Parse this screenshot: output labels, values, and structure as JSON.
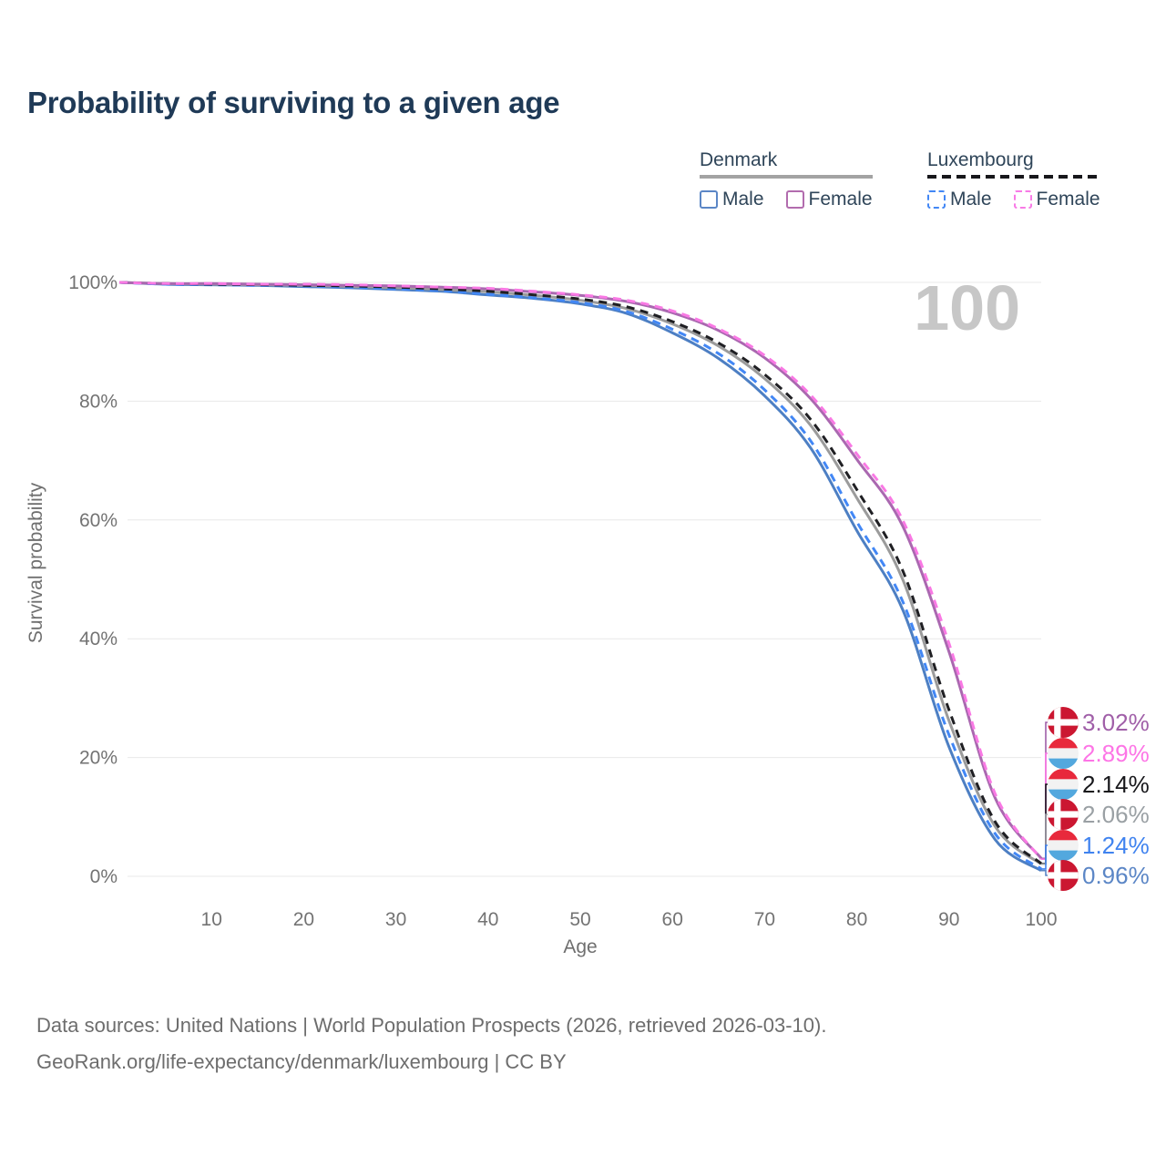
{
  "title": "Probability of surviving to a given age",
  "watermark": "100",
  "legend": {
    "groups": [
      {
        "label": "Denmark",
        "style": "solid",
        "underline_color": "#a3a3a3",
        "items": [
          {
            "label": "Male",
            "color": "#5b86c6"
          },
          {
            "label": "Female",
            "color": "#b26cae"
          }
        ]
      },
      {
        "label": "Luxembourg",
        "style": "dashed",
        "underline_color": "#17171b",
        "items": [
          {
            "label": "Male",
            "color": "#4287f5"
          },
          {
            "label": "Female",
            "color": "#f87ae6"
          }
        ]
      }
    ]
  },
  "chart_data": {
    "type": "line",
    "title": "Probability of surviving to a given age",
    "xlabel": "Age",
    "ylabel": "Survival probability",
    "xlim": [
      0,
      100
    ],
    "ylim": [
      0,
      100
    ],
    "grid": "horizontal",
    "legend_position": "top-right",
    "x_ticks": [
      10,
      20,
      30,
      40,
      50,
      60,
      70,
      80,
      90,
      100
    ],
    "y_ticks": [
      "0%",
      "20%",
      "40%",
      "60%",
      "80%",
      "100%"
    ],
    "x": [
      0,
      5,
      10,
      15,
      20,
      25,
      30,
      35,
      40,
      45,
      50,
      55,
      60,
      65,
      70,
      75,
      80,
      85,
      90,
      95,
      100
    ],
    "series": [
      {
        "name": "Denmark Male",
        "country": "Denmark",
        "sex": "Male",
        "color": "#4d7fc3",
        "dash": "solid",
        "flag": "dk",
        "end_value": 0.96,
        "end_label": "0.96%",
        "label_color": "#5b86c6",
        "values": [
          100,
          99.7,
          99.6,
          99.5,
          99.3,
          99.1,
          98.8,
          98.5,
          97.9,
          97.3,
          96.4,
          94.8,
          91.5,
          87.2,
          80.9,
          72.1,
          58.2,
          44.8,
          21.8,
          6.2,
          0.96
        ]
      },
      {
        "name": "Denmark Both Sexes",
        "country": "Denmark",
        "sex": "Both",
        "color": "#9b9b9b",
        "dash": "solid",
        "flag": "dk",
        "end_value": 2.06,
        "end_label": "2.06%",
        "label_color": "#9aa0a4",
        "values": [
          100,
          99.8,
          99.7,
          99.6,
          99.5,
          99.3,
          99.1,
          98.8,
          98.4,
          97.8,
          97.0,
          95.6,
          93.0,
          89.3,
          83.8,
          75.9,
          63.7,
          49.9,
          26.2,
          8.4,
          2.06
        ]
      },
      {
        "name": "Denmark Female",
        "country": "Denmark",
        "sex": "Female",
        "color": "#aa68b0",
        "dash": "solid",
        "flag": "dk",
        "end_value": 3.02,
        "end_label": "3.02%",
        "label_color": "#a05fa8",
        "values": [
          100,
          99.8,
          99.8,
          99.7,
          99.6,
          99.5,
          99.4,
          99.2,
          98.9,
          98.4,
          97.8,
          96.8,
          94.9,
          91.9,
          87.3,
          80.4,
          70.2,
          58.9,
          37.8,
          13.2,
          3.02
        ]
      },
      {
        "name": "Luxembourg Male",
        "country": "Luxembourg",
        "sex": "Male",
        "color": "#4287f5",
        "dash": "dashed",
        "flag": "lu",
        "end_value": 1.24,
        "end_label": "1.24%",
        "label_color": "#4083ef",
        "values": [
          100,
          99.7,
          99.6,
          99.5,
          99.4,
          99.2,
          98.9,
          98.6,
          98.0,
          97.4,
          96.6,
          95.1,
          92.1,
          88.0,
          81.9,
          73.3,
          59.7,
          46.2,
          23.8,
          7.2,
          1.24
        ]
      },
      {
        "name": "Luxembourg Both Sexes",
        "country": "Luxembourg",
        "sex": "Both",
        "color": "#1f1f23",
        "dash": "dashed",
        "flag": "lu",
        "end_value": 2.14,
        "end_label": "2.14%",
        "label_color": "#17171b",
        "values": [
          100,
          99.8,
          99.7,
          99.6,
          99.5,
          99.4,
          99.2,
          98.9,
          98.5,
          97.9,
          97.2,
          95.9,
          93.4,
          89.8,
          84.5,
          76.9,
          65.1,
          51.4,
          28.0,
          9.2,
          2.14
        ]
      },
      {
        "name": "Luxembourg Female",
        "country": "Luxembourg",
        "sex": "Female",
        "color": "#f979e4",
        "dash": "dashed",
        "flag": "lu",
        "end_value": 2.89,
        "end_label": "2.89%",
        "label_color": "#fd75e6",
        "values": [
          100,
          99.8,
          99.8,
          99.7,
          99.7,
          99.6,
          99.4,
          99.2,
          99.0,
          98.5,
          97.9,
          97.0,
          95.2,
          92.2,
          87.7,
          81.0,
          71.1,
          59.9,
          39.2,
          13.9,
          2.89
        ]
      }
    ]
  },
  "footer": {
    "line1": "Data sources: United Nations | World Population Prospects (2026, retrieved 2026-03-10).",
    "line2": "GeoRank.org/life-expectancy/denmark/luxembourg | CC BY"
  }
}
